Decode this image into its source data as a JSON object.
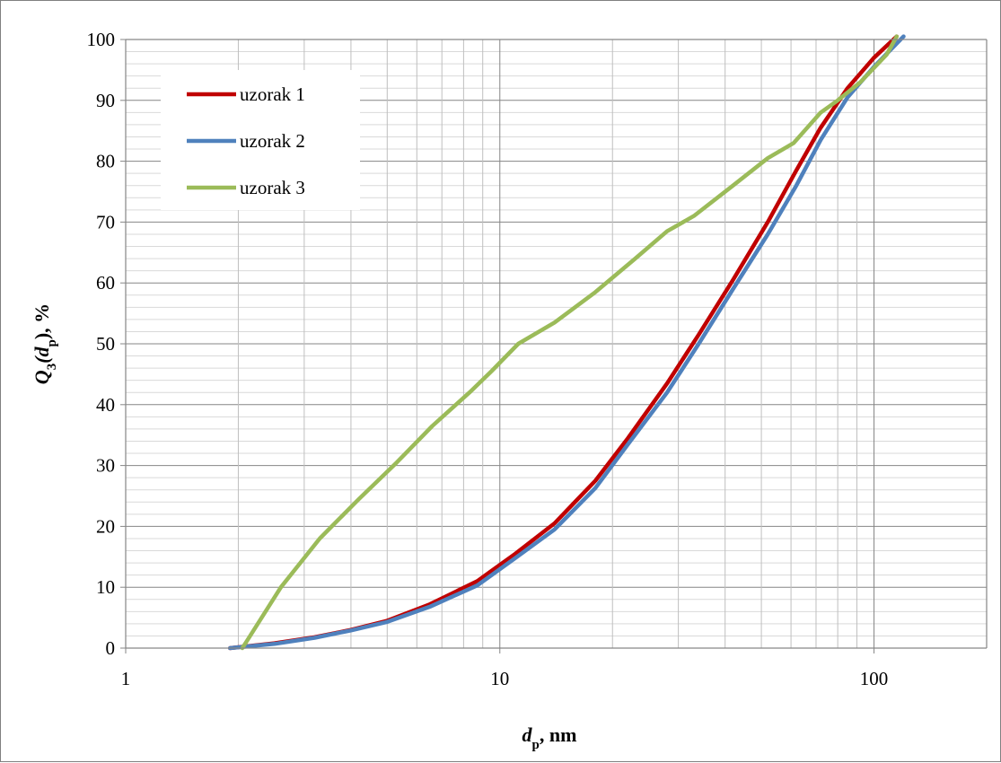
{
  "chart_data": {
    "type": "line",
    "title": "",
    "xlabel": {
      "main": "d",
      "sub": "p",
      "rest": ", nm"
    },
    "ylabel": {
      "main": "Q",
      "sub1": "3",
      "mid": "(d",
      "sub2": "p",
      "rest": "), %"
    },
    "x_scale": "log",
    "xlim": [
      1,
      200
    ],
    "ylim": [
      0,
      100
    ],
    "x_ticks": [
      1,
      10,
      100
    ],
    "x_tick_labels": [
      "1",
      "10",
      "100"
    ],
    "y_ticks": [
      0,
      10,
      20,
      30,
      40,
      50,
      60,
      70,
      80,
      90,
      100
    ],
    "y_tick_labels": [
      "0",
      "10",
      "20",
      "30",
      "40",
      "50",
      "60",
      "70",
      "80",
      "90",
      "100"
    ],
    "grid": true,
    "legend_position": "top-left",
    "series": [
      {
        "name": "uzorak 1",
        "color": "#c00000",
        "x": [
          1.9,
          2.5,
          3.2,
          4.0,
          5.0,
          6.5,
          8.7,
          11.0,
          14.0,
          18.0,
          22.0,
          28.0,
          34.0,
          42.0,
          52.0,
          62.0,
          72.0,
          85.0,
          100.0,
          115.0
        ],
        "y": [
          0,
          0.8,
          1.8,
          3.0,
          4.5,
          7.2,
          11.0,
          15.5,
          20.5,
          27.5,
          34.5,
          43.5,
          51.5,
          60.5,
          70.0,
          78.5,
          85.5,
          92.0,
          97.0,
          100.5
        ]
      },
      {
        "name": "uzorak 2",
        "color": "#4f81bd",
        "x": [
          1.9,
          2.5,
          3.2,
          4.0,
          5.0,
          6.5,
          8.7,
          11.0,
          14.0,
          18.0,
          22.0,
          28.0,
          34.0,
          42.0,
          52.0,
          62.0,
          72.0,
          85.0,
          100.0,
          120.0
        ],
        "y": [
          0,
          0.7,
          1.7,
          2.9,
          4.3,
          6.8,
          10.3,
          14.8,
          19.5,
          26.3,
          33.5,
          42.0,
          50.0,
          59.0,
          68.0,
          76.0,
          83.5,
          90.5,
          95.5,
          100.5
        ]
      },
      {
        "name": "uzorak 3",
        "color": "#9bbb59",
        "x": [
          2.05,
          2.1,
          2.6,
          3.3,
          4.2,
          5.3,
          6.6,
          8.3,
          9.5,
          11.2,
          14.0,
          18.0,
          23.0,
          28.0,
          33.0,
          42.0,
          52.0,
          61.0,
          72.0,
          80.0,
          92.0,
          108.0,
          115.0
        ],
        "y": [
          0,
          1.0,
          10.0,
          18.0,
          24.5,
          30.5,
          36.5,
          42.0,
          45.5,
          50.0,
          53.5,
          58.5,
          64.0,
          68.5,
          71.0,
          76.0,
          80.5,
          83.0,
          88.0,
          90.0,
          93.0,
          97.5,
          100.5
        ]
      }
    ]
  }
}
